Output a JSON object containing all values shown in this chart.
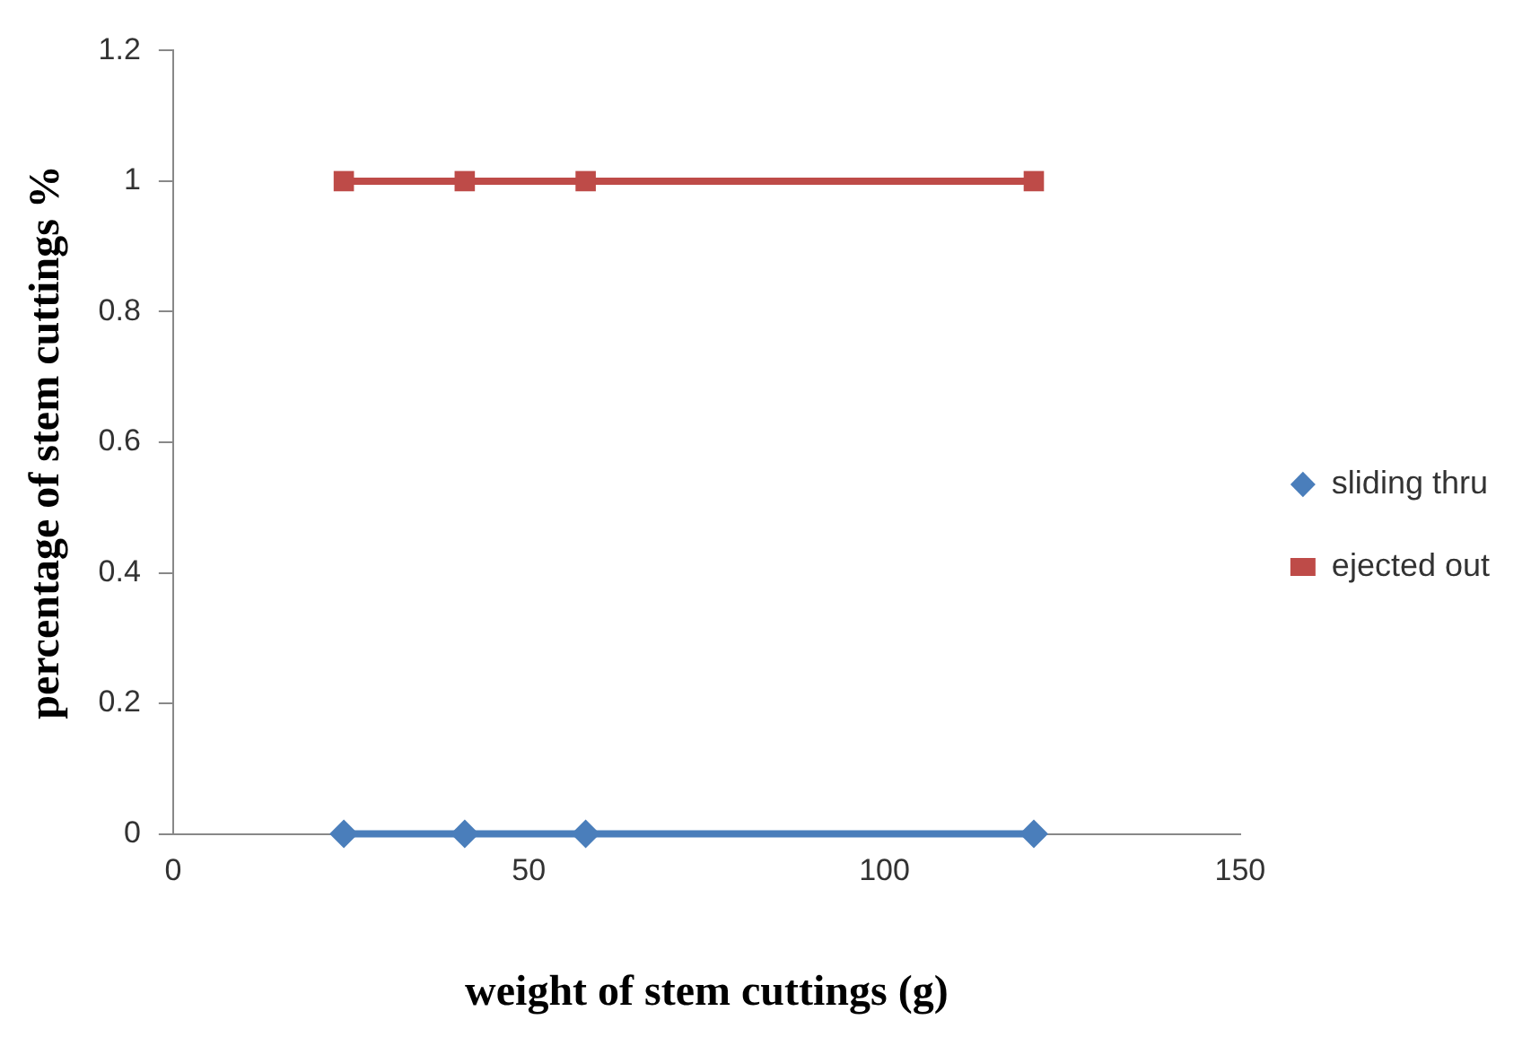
{
  "chart_data": {
    "type": "line",
    "xlabel": "weight of stem cuttings (g)",
    "ylabel": "percentage of stem cuttings %",
    "x": [
      24,
      41,
      58,
      121
    ],
    "series": [
      {
        "name": "sliding thru",
        "color": "#4a7ebb",
        "marker": "diamond",
        "values": [
          0,
          0,
          0,
          0
        ]
      },
      {
        "name": "ejected out",
        "color": "#be4b48",
        "marker": "square",
        "values": [
          1,
          1,
          1,
          1
        ]
      }
    ],
    "xlim": [
      0,
      150
    ],
    "xticks": [
      0,
      50,
      100,
      150
    ],
    "ylim": [
      0,
      1.2
    ],
    "yticks": [
      0,
      0.2,
      0.4,
      0.6,
      0.8,
      1,
      1.2
    ],
    "grid": false,
    "legend": "right",
    "line_style": "solid"
  }
}
